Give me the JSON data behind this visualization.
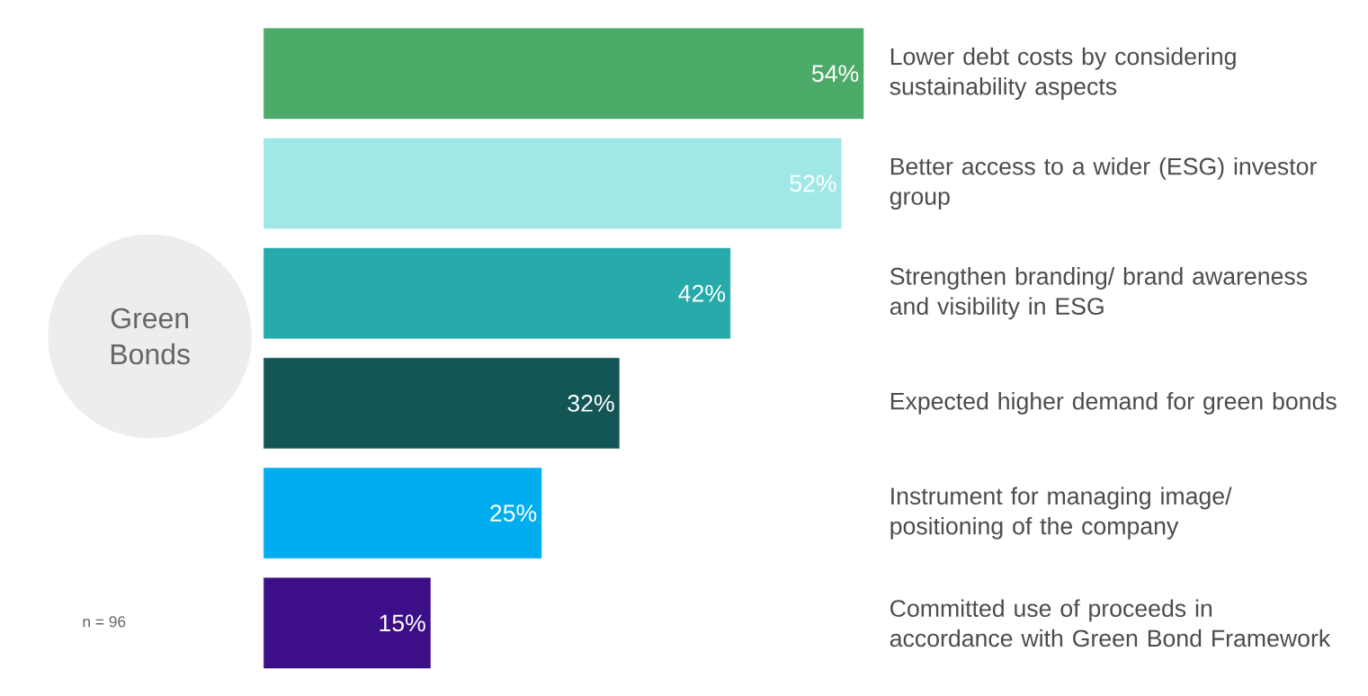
{
  "chart_data": {
    "type": "bar",
    "orientation": "horizontal",
    "title": "Green Bonds",
    "categories": [
      "Lower debt costs by considering sustainability aspects",
      "Better access to a wider (ESG) investor group",
      "Strengthen branding/ brand awareness and visibility in ESG",
      "Expected higher demand for green bonds",
      "Instrument for managing image/ positioning of the company",
      "Committed use of proceeds in accordance with Green Bond Framework"
    ],
    "values": [
      54,
      52,
      42,
      32,
      25,
      15
    ],
    "value_labels": [
      "54%",
      "52%",
      "42%",
      "32%",
      "25%",
      "15%"
    ],
    "colors": [
      "#4dab6a",
      "#a0e8e8",
      "#26aaaa",
      "#145656",
      "#00aeef",
      "#3c0e87"
    ],
    "annotations": [
      "n = 96"
    ]
  }
}
